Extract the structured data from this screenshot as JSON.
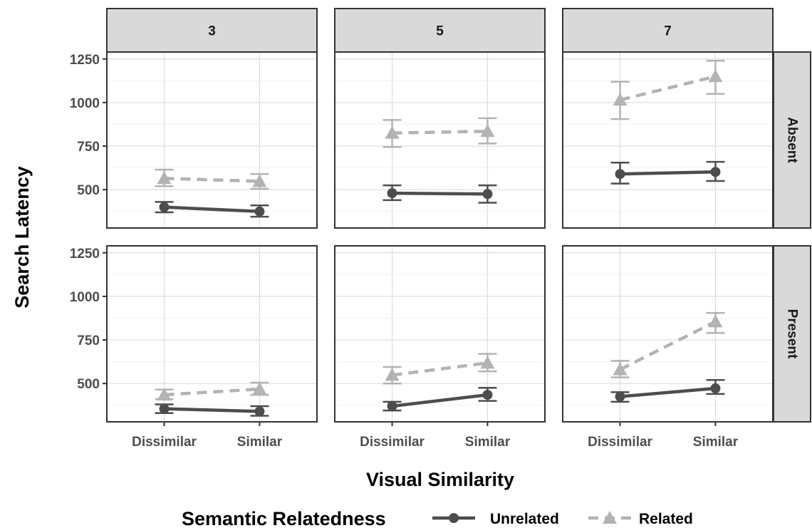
{
  "chart_data": {
    "type": "line",
    "facet_cols": [
      "3",
      "5",
      "7"
    ],
    "facet_rows": [
      "Absent",
      "Present"
    ],
    "categories": [
      "Dissimilar",
      "Similar"
    ],
    "xlabel": "Visual Similarity",
    "ylabel": "Search Latency",
    "ylim": [
      280,
      1290
    ],
    "yticks": [
      500,
      750,
      1000,
      1250
    ],
    "grid": true,
    "legend": {
      "title": "Semantic Relatedness",
      "position": "bottom",
      "entries": [
        "Unrelated",
        "Related"
      ]
    },
    "series": [
      {
        "name": "Unrelated",
        "color": "#4d4d4d",
        "linestyle": "solid",
        "marker": "circle",
        "panels": [
          {
            "col": "3",
            "row": "Absent",
            "values": [
              400,
              375
            ],
            "lower": [
              370,
              345
            ],
            "upper": [
              430,
              410
            ]
          },
          {
            "col": "5",
            "row": "Absent",
            "values": [
              480,
              475
            ],
            "lower": [
              440,
              425
            ],
            "upper": [
              525,
              525
            ]
          },
          {
            "col": "7",
            "row": "Absent",
            "values": [
              590,
              602
            ],
            "lower": [
              535,
              550
            ],
            "upper": [
              655,
              660
            ]
          },
          {
            "col": "3",
            "row": "Present",
            "values": [
              355,
              340
            ],
            "lower": [
              330,
              315
            ],
            "upper": [
              380,
              370
            ]
          },
          {
            "col": "5",
            "row": "Present",
            "values": [
              370,
              435
            ],
            "lower": [
              345,
              400
            ],
            "upper": [
              395,
              475
            ]
          },
          {
            "col": "7",
            "row": "Present",
            "values": [
              425,
              472
            ],
            "lower": [
              395,
              440
            ],
            "upper": [
              450,
              520
            ]
          }
        ]
      },
      {
        "name": "Related",
        "color": "#b3b3b3",
        "linestyle": "dashed",
        "marker": "triangle",
        "panels": [
          {
            "col": "3",
            "row": "Absent",
            "values": [
              565,
              548
            ],
            "lower": [
              520,
              505
            ],
            "upper": [
              615,
              590
            ]
          },
          {
            "col": "5",
            "row": "Absent",
            "values": [
              825,
              835
            ],
            "lower": [
              745,
              765
            ],
            "upper": [
              900,
              910
            ]
          },
          {
            "col": "7",
            "row": "Absent",
            "values": [
              1015,
              1150
            ],
            "lower": [
              905,
              1050
            ],
            "upper": [
              1120,
              1240
            ]
          },
          {
            "col": "3",
            "row": "Present",
            "values": [
              435,
              468
            ],
            "lower": [
              410,
              435
            ],
            "upper": [
              465,
              505
            ]
          },
          {
            "col": "5",
            "row": "Present",
            "values": [
              548,
              618
            ],
            "lower": [
              500,
              570
            ],
            "upper": [
              595,
              670
            ]
          },
          {
            "col": "7",
            "row": "Present",
            "values": [
              580,
              855
            ],
            "lower": [
              535,
              790
            ],
            "upper": [
              630,
              905
            ]
          }
        ]
      }
    ]
  }
}
